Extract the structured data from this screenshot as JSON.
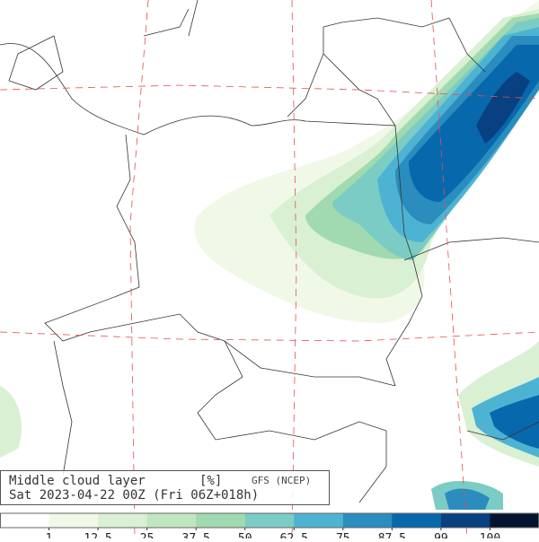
{
  "legend": {
    "title": "Middle cloud layer",
    "unit": "[%]",
    "source": "GFS (NCEP)",
    "valid": "Sat 2023-04-22 00Z (Fri 06Z+018h)"
  },
  "colorbar": {
    "colors": [
      "#ffffff",
      "#f0f9e8",
      "#d9f0d3",
      "#c0e6c0",
      "#a1d9b0",
      "#7bccc4",
      "#4eb3d3",
      "#2b8cbe",
      "#0868ac",
      "#084081",
      "#04142e"
    ],
    "ticks": [
      1,
      12.5,
      25,
      37.5,
      50,
      62.5,
      75,
      87.5,
      99,
      100
    ]
  }
}
